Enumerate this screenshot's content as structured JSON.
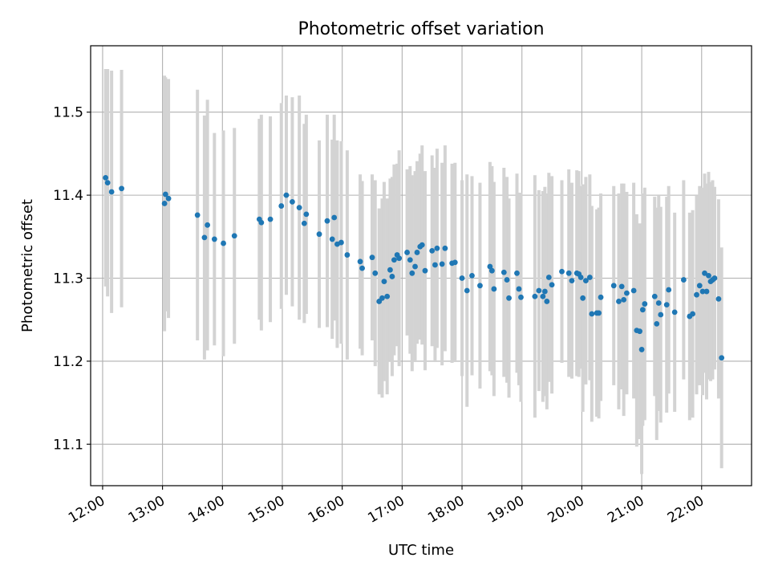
{
  "chart_data": {
    "type": "scatter",
    "title": "Photometric offset variation",
    "xlabel": "UTC time",
    "ylabel": "Photometric offset",
    "x_tick_labels": [
      "12:00",
      "13:00",
      "14:00",
      "15:00",
      "16:00",
      "17:00",
      "18:00",
      "19:00",
      "20:00",
      "21:00",
      "22:00"
    ],
    "y_tick_labels": [
      "11.1",
      "11.2",
      "11.3",
      "11.4",
      "11.5"
    ],
    "xlim": [
      "11:48",
      "22:50"
    ],
    "ylim": [
      11.05,
      11.58
    ],
    "grid": true,
    "colors": {
      "points": "#1f77b4",
      "errorbars": "#d3d3d3",
      "grid": "#b0b0b0"
    },
    "series": [
      {
        "points": [
          {
            "x": "12:03",
            "y": 11.421,
            "err": 0.131
          },
          {
            "x": "12:05",
            "y": 11.415,
            "err": 0.137
          },
          {
            "x": "12:09",
            "y": 11.404,
            "err": 0.146
          },
          {
            "x": "12:19",
            "y": 11.408,
            "err": 0.143
          },
          {
            "x": "13:02",
            "y": 11.39,
            "err": 0.154
          },
          {
            "x": "13:03",
            "y": 11.401,
            "err": 0.141
          },
          {
            "x": "13:06",
            "y": 11.396,
            "err": 0.144
          },
          {
            "x": "13:35",
            "y": 11.376,
            "err": 0.151
          },
          {
            "x": "13:42",
            "y": 11.349,
            "err": 0.147
          },
          {
            "x": "13:45",
            "y": 11.364,
            "err": 0.151
          },
          {
            "x": "13:52",
            "y": 11.347,
            "err": 0.128
          },
          {
            "x": "14:01",
            "y": 11.342,
            "err": 0.136
          },
          {
            "x": "14:12",
            "y": 11.351,
            "err": 0.13
          },
          {
            "x": "14:37",
            "y": 11.371,
            "err": 0.121
          },
          {
            "x": "14:39",
            "y": 11.367,
            "err": 0.13
          },
          {
            "x": "14:48",
            "y": 11.371,
            "err": 0.124
          },
          {
            "x": "14:59",
            "y": 11.387,
            "err": 0.124
          },
          {
            "x": "15:04",
            "y": 11.4,
            "err": 0.12
          },
          {
            "x": "15:10",
            "y": 11.392,
            "err": 0.126
          },
          {
            "x": "15:17",
            "y": 11.385,
            "err": 0.135
          },
          {
            "x": "15:22",
            "y": 11.366,
            "err": 0.12
          },
          {
            "x": "15:24",
            "y": 11.377,
            "err": 0.12
          },
          {
            "x": "15:37",
            "y": 11.353,
            "err": 0.113
          },
          {
            "x": "15:45",
            "y": 11.369,
            "err": 0.128
          },
          {
            "x": "15:50",
            "y": 11.347,
            "err": 0.12
          },
          {
            "x": "15:52",
            "y": 11.373,
            "err": 0.124
          },
          {
            "x": "15:55",
            "y": 11.341,
            "err": 0.125
          },
          {
            "x": "15:59",
            "y": 11.343,
            "err": 0.122
          },
          {
            "x": "16:05",
            "y": 11.328,
            "err": 0.126
          },
          {
            "x": "16:18",
            "y": 11.32,
            "err": 0.105
          },
          {
            "x": "16:20",
            "y": 11.312,
            "err": 0.105
          },
          {
            "x": "16:30",
            "y": 11.325,
            "err": 0.1
          },
          {
            "x": "16:33",
            "y": 11.306,
            "err": 0.112
          },
          {
            "x": "16:37",
            "y": 11.272,
            "err": 0.112
          },
          {
            "x": "16:40",
            "y": 11.276,
            "err": 0.12
          },
          {
            "x": "16:42",
            "y": 11.296,
            "err": 0.12
          },
          {
            "x": "16:45",
            "y": 11.278,
            "err": 0.118
          },
          {
            "x": "16:48",
            "y": 11.31,
            "err": 0.11
          },
          {
            "x": "16:50",
            "y": 11.302,
            "err": 0.12
          },
          {
            "x": "16:52",
            "y": 11.322,
            "err": 0.115
          },
          {
            "x": "16:55",
            "y": 11.328,
            "err": 0.11
          },
          {
            "x": "16:57",
            "y": 11.324,
            "err": 0.13
          },
          {
            "x": "17:05",
            "y": 11.331,
            "err": 0.1
          },
          {
            "x": "17:08",
            "y": 11.322,
            "err": 0.113
          },
          {
            "x": "17:10",
            "y": 11.306,
            "err": 0.118
          },
          {
            "x": "17:13",
            "y": 11.314,
            "err": 0.115
          },
          {
            "x": "17:15",
            "y": 11.331,
            "err": 0.11
          },
          {
            "x": "17:18",
            "y": 11.338,
            "err": 0.112
          },
          {
            "x": "17:20",
            "y": 11.34,
            "err": 0.12
          },
          {
            "x": "17:23",
            "y": 11.309,
            "err": 0.12
          },
          {
            "x": "17:30",
            "y": 11.333,
            "err": 0.115
          },
          {
            "x": "17:33",
            "y": 11.316,
            "err": 0.117
          },
          {
            "x": "17:35",
            "y": 11.336,
            "err": 0.12
          },
          {
            "x": "17:40",
            "y": 11.317,
            "err": 0.122
          },
          {
            "x": "17:43",
            "y": 11.336,
            "err": 0.124
          },
          {
            "x": "17:50",
            "y": 11.318,
            "err": 0.12
          },
          {
            "x": "17:53",
            "y": 11.319,
            "err": 0.12
          },
          {
            "x": "18:00",
            "y": 11.3,
            "err": 0.118
          },
          {
            "x": "18:05",
            "y": 11.285,
            "err": 0.14
          },
          {
            "x": "18:10",
            "y": 11.303,
            "err": 0.12
          },
          {
            "x": "18:18",
            "y": 11.291,
            "err": 0.124
          },
          {
            "x": "18:28",
            "y": 11.314,
            "err": 0.126
          },
          {
            "x": "18:30",
            "y": 11.309,
            "err": 0.126
          },
          {
            "x": "18:32",
            "y": 11.287,
            "err": 0.129
          },
          {
            "x": "18:42",
            "y": 11.307,
            "err": 0.126
          },
          {
            "x": "18:45",
            "y": 11.298,
            "err": 0.124
          },
          {
            "x": "18:47",
            "y": 11.276,
            "err": 0.12
          },
          {
            "x": "18:55",
            "y": 11.306,
            "err": 0.12
          },
          {
            "x": "18:57",
            "y": 11.287,
            "err": 0.116
          },
          {
            "x": "18:59",
            "y": 11.277,
            "err": 0.126
          },
          {
            "x": "19:13",
            "y": 11.278,
            "err": 0.146
          },
          {
            "x": "19:17",
            "y": 11.285,
            "err": 0.121
          },
          {
            "x": "19:21",
            "y": 11.278,
            "err": 0.127
          },
          {
            "x": "19:23",
            "y": 11.284,
            "err": 0.126
          },
          {
            "x": "19:25",
            "y": 11.272,
            "err": 0.13
          },
          {
            "x": "19:27",
            "y": 11.301,
            "err": 0.126
          },
          {
            "x": "19:30",
            "y": 11.292,
            "err": 0.131
          },
          {
            "x": "19:40",
            "y": 11.308,
            "err": 0.11
          },
          {
            "x": "19:47",
            "y": 11.306,
            "err": 0.125
          },
          {
            "x": "19:50",
            "y": 11.297,
            "err": 0.118
          },
          {
            "x": "19:55",
            "y": 11.306,
            "err": 0.124
          },
          {
            "x": "19:57",
            "y": 11.305,
            "err": 0.124
          },
          {
            "x": "19:59",
            "y": 11.301,
            "err": 0.11
          },
          {
            "x": "20:01",
            "y": 11.276,
            "err": 0.137
          },
          {
            "x": "20:04",
            "y": 11.297,
            "err": 0.125
          },
          {
            "x": "20:08",
            "y": 11.301,
            "err": 0.124
          },
          {
            "x": "20:10",
            "y": 11.257,
            "err": 0.13
          },
          {
            "x": "20:15",
            "y": 11.258,
            "err": 0.125
          },
          {
            "x": "20:17",
            "y": 11.258,
            "err": 0.127
          },
          {
            "x": "20:19",
            "y": 11.277,
            "err": 0.125
          },
          {
            "x": "20:32",
            "y": 11.291,
            "err": 0.12
          },
          {
            "x": "20:37",
            "y": 11.272,
            "err": 0.13
          },
          {
            "x": "20:40",
            "y": 11.29,
            "err": 0.124
          },
          {
            "x": "20:42",
            "y": 11.274,
            "err": 0.14
          },
          {
            "x": "20:45",
            "y": 11.282,
            "err": 0.122
          },
          {
            "x": "20:52",
            "y": 11.285,
            "err": 0.13
          },
          {
            "x": "20:55",
            "y": 11.237,
            "err": 0.14
          },
          {
            "x": "20:58",
            "y": 11.236,
            "err": 0.13
          },
          {
            "x": "21:00",
            "y": 11.214,
            "err": 0.15
          },
          {
            "x": "21:01",
            "y": 11.262,
            "err": 0.14
          },
          {
            "x": "21:03",
            "y": 11.269,
            "err": 0.14
          },
          {
            "x": "21:13",
            "y": 11.278,
            "err": 0.12
          },
          {
            "x": "21:15",
            "y": 11.245,
            "err": 0.14
          },
          {
            "x": "21:17",
            "y": 11.27,
            "err": 0.13
          },
          {
            "x": "21:19",
            "y": 11.256,
            "err": 0.13
          },
          {
            "x": "21:25",
            "y": 11.268,
            "err": 0.13
          },
          {
            "x": "21:27",
            "y": 11.286,
            "err": 0.125
          },
          {
            "x": "21:33",
            "y": 11.259,
            "err": 0.12
          },
          {
            "x": "21:42",
            "y": 11.298,
            "err": 0.12
          },
          {
            "x": "21:48",
            "y": 11.254,
            "err": 0.125
          },
          {
            "x": "21:51",
            "y": 11.257,
            "err": 0.125
          },
          {
            "x": "21:55",
            "y": 11.28,
            "err": 0.12
          },
          {
            "x": "21:58",
            "y": 11.291,
            "err": 0.12
          },
          {
            "x": "22:01",
            "y": 11.284,
            "err": 0.125
          },
          {
            "x": "22:03",
            "y": 11.306,
            "err": 0.12
          },
          {
            "x": "22:05",
            "y": 11.284,
            "err": 0.13
          },
          {
            "x": "22:07",
            "y": 11.303,
            "err": 0.125
          },
          {
            "x": "22:09",
            "y": 11.296,
            "err": 0.12
          },
          {
            "x": "22:11",
            "y": 11.298,
            "err": 0.12
          },
          {
            "x": "22:13",
            "y": 11.3,
            "err": 0.11
          },
          {
            "x": "22:17",
            "y": 11.275,
            "err": 0.12
          },
          {
            "x": "22:20",
            "y": 11.204,
            "err": 0.133
          }
        ]
      }
    ]
  }
}
